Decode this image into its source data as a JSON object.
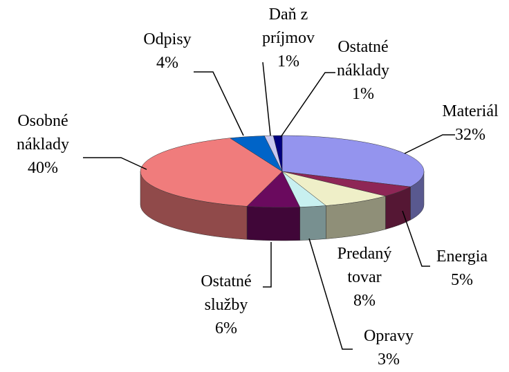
{
  "chart_data": {
    "type": "pie3d",
    "categories": [
      "Materiál",
      "Energia",
      "Predaný tovar",
      "Opravy",
      "Ostatné služby",
      "Osobné náklady",
      "Odpisy",
      "Daň z príjmov",
      "Ostatné náklady"
    ],
    "values": [
      32,
      5,
      8,
      3,
      6,
      40,
      4,
      1,
      1
    ],
    "value_labels": [
      "32%",
      "5%",
      "8%",
      "3%",
      "6%",
      "40%",
      "4%",
      "1%",
      "1%"
    ],
    "colors": [
      "#9494ee",
      "#8e2656",
      "#efefc8",
      "#c8f0f0",
      "#6a0a5e",
      "#f07c7c",
      "#0064c8",
      "#c8c8f0",
      "#000080"
    ]
  }
}
